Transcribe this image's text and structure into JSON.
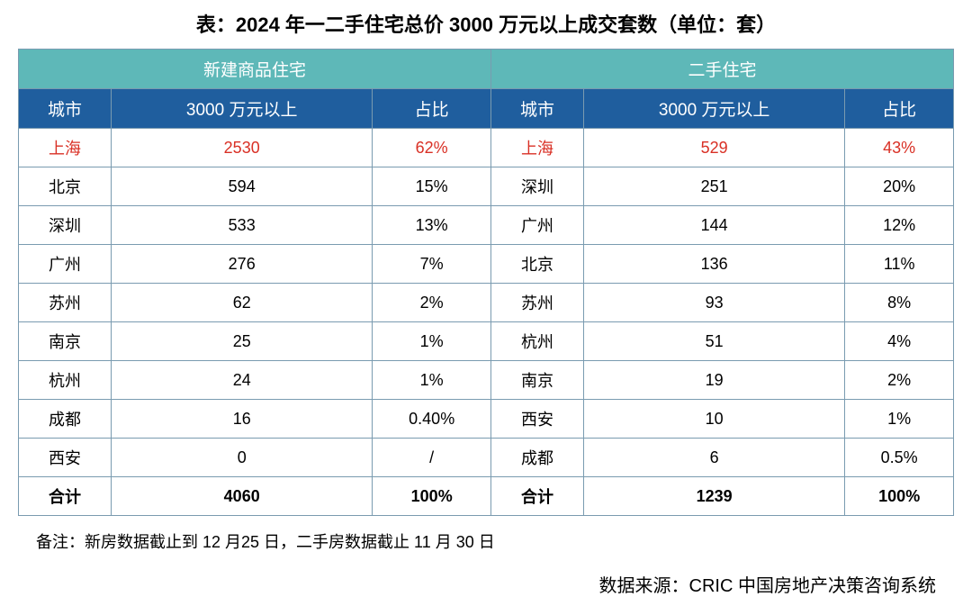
{
  "title": "表：2024 年一二手住宅总价 3000 万元以上成交套数（单位：套）",
  "table": {
    "type": "table",
    "group_headers": [
      "新建商品住宅",
      "二手住宅"
    ],
    "sub_headers": [
      "城市",
      "3000 万元以上",
      "占比",
      "城市",
      "3000 万元以上",
      "占比"
    ],
    "rows": [
      {
        "cells": [
          "上海",
          "2530",
          "62%",
          "上海",
          "529",
          "43%"
        ],
        "highlight": true
      },
      {
        "cells": [
          "北京",
          "594",
          "15%",
          "深圳",
          "251",
          "20%"
        ],
        "highlight": false
      },
      {
        "cells": [
          "深圳",
          "533",
          "13%",
          "广州",
          "144",
          "12%"
        ],
        "highlight": false
      },
      {
        "cells": [
          "广州",
          "276",
          "7%",
          "北京",
          "136",
          "11%"
        ],
        "highlight": false
      },
      {
        "cells": [
          "苏州",
          "62",
          "2%",
          "苏州",
          "93",
          "8%"
        ],
        "highlight": false
      },
      {
        "cells": [
          "南京",
          "25",
          "1%",
          "杭州",
          "51",
          "4%"
        ],
        "highlight": false
      },
      {
        "cells": [
          "杭州",
          "24",
          "1%",
          "南京",
          "19",
          "2%"
        ],
        "highlight": false
      },
      {
        "cells": [
          "成都",
          "16",
          "0.40%",
          "西安",
          "10",
          "1%"
        ],
        "highlight": false
      },
      {
        "cells": [
          "西安",
          "0",
          "/",
          "成都",
          "6",
          "0.5%"
        ],
        "highlight": false
      }
    ],
    "total_row": {
      "cells": [
        "合计",
        "4060",
        "100%",
        "合计",
        "1239",
        "100%"
      ]
    },
    "colors": {
      "header1_bg": "#5eb8b8",
      "header2_bg": "#1f5e9e",
      "header_text": "#ffffff",
      "border": "#7a9bb0",
      "highlight_text": "#d93025",
      "normal_text": "#000000",
      "background": "#ffffff"
    },
    "font_sizes": {
      "title": 22,
      "header": 19,
      "cell": 18
    }
  },
  "footnote": "备注：新房数据截止到 12 月25 日，二手房数据截止 11 月 30 日",
  "source": "数据来源：CRIC 中国房地产决策咨询系统"
}
